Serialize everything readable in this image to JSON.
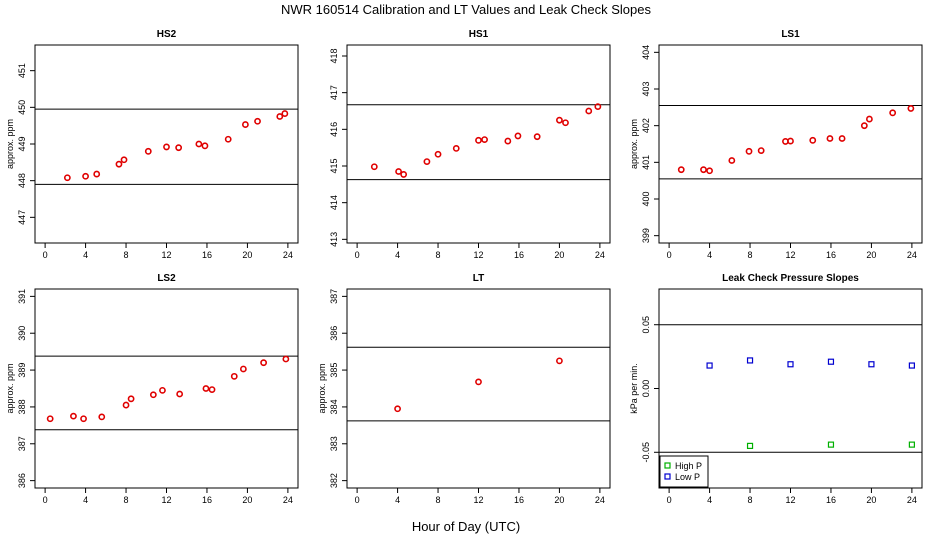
{
  "title": "NWR  160514  Calibration and LT Values and Leak Check Slopes",
  "xlabel": "Hour of Day (UTC)",
  "chart_data": [
    {
      "type": "scatter",
      "title": "HS2",
      "ylabel": "approx. ppm",
      "xlim": [
        -1,
        25
      ],
      "ylim": [
        446.3,
        451.7
      ],
      "xticks": [
        0,
        4,
        8,
        12,
        16,
        20,
        24
      ],
      "yticks": [
        447,
        448,
        449,
        450,
        451
      ],
      "hlines": [
        447.9,
        449.95
      ],
      "marker_color": "#e00000",
      "series": [
        {
          "x": [
            2.2,
            4.0,
            5.1,
            7.3,
            7.8,
            10.2,
            12.0,
            13.2,
            15.2,
            15.8,
            18.1,
            19.8,
            21.0,
            23.2,
            23.7
          ],
          "y": [
            448.08,
            448.12,
            448.18,
            448.45,
            448.57,
            448.8,
            448.92,
            448.9,
            449.0,
            448.95,
            449.13,
            449.53,
            449.62,
            449.75,
            449.83
          ]
        }
      ]
    },
    {
      "type": "scatter",
      "title": "HS1",
      "ylabel": "",
      "xlim": [
        -1,
        25
      ],
      "ylim": [
        412.9,
        418.3
      ],
      "xticks": [
        0,
        4,
        8,
        12,
        16,
        20,
        24
      ],
      "yticks": [
        413,
        414,
        415,
        416,
        417,
        418
      ],
      "hlines": [
        414.63,
        416.67
      ],
      "marker_color": "#e00000",
      "series": [
        {
          "x": [
            1.7,
            4.1,
            4.6,
            6.9,
            8.0,
            9.8,
            12.0,
            12.6,
            14.9,
            15.9,
            17.8,
            20.0,
            20.6,
            22.9,
            23.8
          ],
          "y": [
            414.98,
            414.85,
            414.77,
            415.12,
            415.32,
            415.48,
            415.7,
            415.72,
            415.68,
            415.82,
            415.8,
            416.25,
            416.18,
            416.5,
            416.62
          ]
        }
      ]
    },
    {
      "type": "scatter",
      "title": "LS1",
      "ylabel": "approx. ppm",
      "xlim": [
        -1,
        25
      ],
      "ylim": [
        398.8,
        404.2
      ],
      "xticks": [
        0,
        4,
        8,
        12,
        16,
        20,
        24
      ],
      "yticks": [
        399,
        400,
        401,
        402,
        403,
        404
      ],
      "hlines": [
        400.55,
        402.55
      ],
      "marker_color": "#e00000",
      "series": [
        {
          "x": [
            1.2,
            3.4,
            4.0,
            6.2,
            7.9,
            9.1,
            11.5,
            12.0,
            14.2,
            15.9,
            17.1,
            19.3,
            19.8,
            22.1,
            23.9
          ],
          "y": [
            400.8,
            400.8,
            400.77,
            401.05,
            401.3,
            401.32,
            401.57,
            401.58,
            401.6,
            401.65,
            401.65,
            402.0,
            402.18,
            402.35,
            402.47
          ]
        }
      ]
    },
    {
      "type": "scatter",
      "title": "LS2",
      "ylabel": "approx. ppm",
      "xlim": [
        -1,
        25
      ],
      "ylim": [
        385.8,
        391.2
      ],
      "xticks": [
        0,
        4,
        8,
        12,
        16,
        20,
        24
      ],
      "yticks": [
        386,
        387,
        388,
        389,
        390,
        391
      ],
      "hlines": [
        387.38,
        389.38
      ],
      "marker_color": "#e00000",
      "series": [
        {
          "x": [
            0.5,
            2.8,
            3.8,
            5.6,
            8.0,
            8.5,
            10.7,
            11.6,
            13.3,
            15.9,
            16.5,
            18.7,
            19.6,
            21.6,
            23.8
          ],
          "y": [
            387.68,
            387.75,
            387.68,
            387.73,
            388.05,
            388.22,
            388.33,
            388.45,
            388.35,
            388.5,
            388.47,
            388.83,
            389.03,
            389.2,
            389.3
          ]
        }
      ]
    },
    {
      "type": "scatter",
      "title": "LT",
      "ylabel": "approx. ppm",
      "xlim": [
        -1,
        25
      ],
      "ylim": [
        381.8,
        387.2
      ],
      "xticks": [
        0,
        4,
        8,
        12,
        16,
        20,
        24
      ],
      "yticks": [
        382,
        383,
        384,
        385,
        386,
        387
      ],
      "hlines": [
        383.62,
        385.62
      ],
      "marker_color": "#e00000",
      "series": [
        {
          "x": [
            4.0,
            12.0,
            20.0
          ],
          "y": [
            383.95,
            384.68,
            385.25
          ]
        }
      ]
    },
    {
      "type": "scatter",
      "title": "Leak Check Pressure Slopes",
      "ylabel": "kPa per min.",
      "xlim": [
        -1,
        25
      ],
      "ylim": [
        -0.078,
        0.078
      ],
      "xticks": [
        0,
        4,
        8,
        12,
        16,
        20,
        24
      ],
      "yticks": [
        -0.05,
        0.0,
        0.05
      ],
      "ytick_labels": [
        "-0.05",
        "0.00",
        "0.05"
      ],
      "hlines": [
        0.05,
        -0.05
      ],
      "legend_position": "bottom-left",
      "series": [
        {
          "name": "High P",
          "color": "#00b000",
          "x": [
            8,
            16,
            24
          ],
          "y": [
            -0.045,
            -0.044,
            -0.044
          ]
        },
        {
          "name": "Low P",
          "color": "#0000d0",
          "x": [
            4,
            8,
            12,
            16,
            20,
            24
          ],
          "y": [
            0.018,
            0.022,
            0.019,
            0.021,
            0.019,
            0.018
          ]
        }
      ]
    }
  ]
}
